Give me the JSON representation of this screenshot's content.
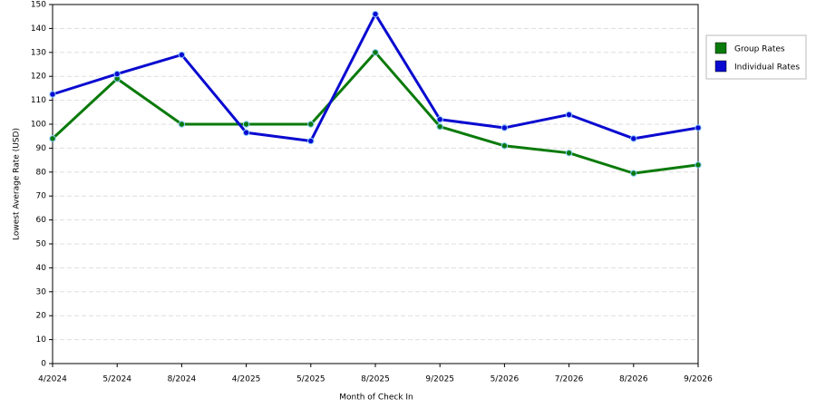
{
  "chart_data": {
    "type": "line",
    "x_label": "Month of Check In",
    "y_label": "Lowest Average Rate (USD)",
    "categories": [
      "4/2024",
      "5/2024",
      "8/2024",
      "4/2025",
      "5/2025",
      "8/2025",
      "9/2025",
      "5/2026",
      "7/2026",
      "8/2026",
      "9/2026"
    ],
    "series": [
      {
        "name": "Group Rates",
        "color": "#0a7a0a",
        "values": [
          94,
          119,
          100,
          100,
          100,
          130,
          99,
          91,
          88,
          79.5,
          83
        ]
      },
      {
        "name": "Individual Rates",
        "color": "#0a0ad0",
        "values": [
          112.5,
          121,
          129,
          96.5,
          93,
          146,
          102,
          98.5,
          104,
          94,
          98.5
        ]
      }
    ],
    "ylim": [
      0,
      150
    ],
    "yticks": [
      0,
      10,
      20,
      30,
      40,
      50,
      60,
      70,
      80,
      90,
      100,
      110,
      120,
      130,
      140,
      150
    ],
    "grid": true,
    "legend": "top-right"
  }
}
